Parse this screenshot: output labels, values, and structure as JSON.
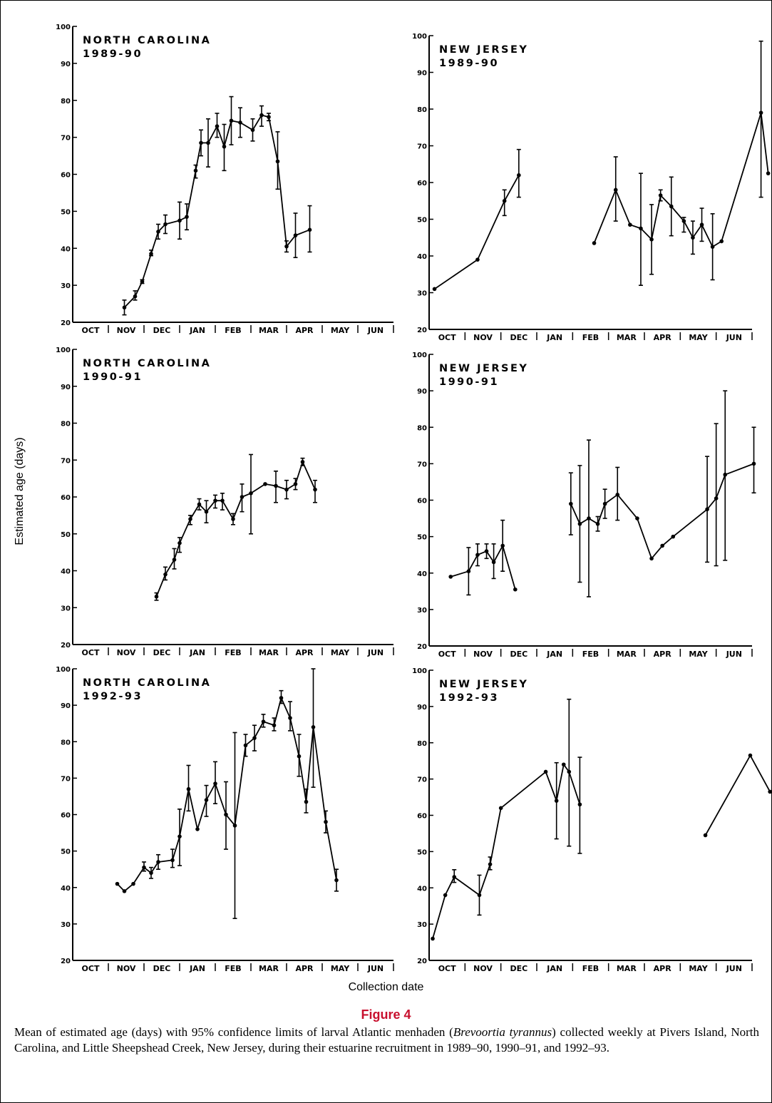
{
  "figure": {
    "y_axis_label": "Estimated age (days)",
    "x_axis_label": "Collection date",
    "title": "Figure 4",
    "caption_parts": [
      "Mean of estimated age (days) with 95% confidence limits of larval Atlantic menhaden (",
      "Brevoortia tyrannus",
      ") collected weekly at Pivers Island, North Carolina, and Little Sheepshead Creek, New Jersey, during their estuarine recruitment in 1989–90, 1990–91, and 1992–93."
    ]
  },
  "colors": {
    "ink": "#000000",
    "figure_title": "#c8102e"
  },
  "chart_data": [
    {
      "type": "line",
      "panel_title": [
        "NORTH CAROLINA",
        "1989-90"
      ],
      "ylim": [
        20,
        100
      ],
      "yticks": [
        20,
        30,
        40,
        50,
        60,
        70,
        80,
        90,
        100
      ],
      "months": [
        "OCT",
        "NOV",
        "DEC",
        "JAN",
        "FEB",
        "MAR",
        "APR",
        "MAY",
        "JUN"
      ],
      "points": [
        {
          "x": 1.45,
          "y": 24,
          "lo": 22,
          "hi": 26
        },
        {
          "x": 1.75,
          "y": 27,
          "lo": 26,
          "hi": 28.5
        },
        {
          "x": 1.95,
          "y": 31,
          "lo": 30.5,
          "hi": 31.5
        },
        {
          "x": 2.2,
          "y": 38.5,
          "lo": 38,
          "hi": 39.5
        },
        {
          "x": 2.4,
          "y": 44.5,
          "lo": 42.5,
          "hi": 46.5
        },
        {
          "x": 2.6,
          "y": 46.5,
          "lo": 44,
          "hi": 49
        },
        {
          "x": 3.0,
          "y": 47.5,
          "lo": 42.5,
          "hi": 52.5
        },
        {
          "x": 3.2,
          "y": 48.5,
          "lo": 45,
          "hi": 52
        },
        {
          "x": 3.45,
          "y": 61,
          "lo": 59,
          "hi": 62.5
        },
        {
          "x": 3.6,
          "y": 68.5,
          "lo": 65,
          "hi": 72
        },
        {
          "x": 3.8,
          "y": 68.5,
          "lo": 62,
          "hi": 75
        },
        {
          "x": 4.05,
          "y": 73,
          "lo": 70,
          "hi": 76.5
        },
        {
          "x": 4.25,
          "y": 67.5,
          "lo": 61,
          "hi": 73.5
        },
        {
          "x": 4.45,
          "y": 74.5,
          "lo": 68,
          "hi": 81
        },
        {
          "x": 4.7,
          "y": 74,
          "lo": 70,
          "hi": 78
        },
        {
          "x": 5.05,
          "y": 72,
          "lo": 69,
          "hi": 75
        },
        {
          "x": 5.3,
          "y": 76,
          "lo": 73,
          "hi": 78.5
        },
        {
          "x": 5.5,
          "y": 75.5,
          "lo": 74.5,
          "hi": 76.5
        },
        {
          "x": 5.75,
          "y": 63.5,
          "lo": 56,
          "hi": 71.5
        },
        {
          "x": 6.0,
          "y": 40.5,
          "lo": 39,
          "hi": 42
        },
        {
          "x": 6.25,
          "y": 43.5,
          "lo": 37.5,
          "hi": 49.5
        },
        {
          "x": 6.65,
          "y": 45,
          "lo": 39,
          "hi": 51.5
        }
      ]
    },
    {
      "type": "line",
      "panel_title": [
        "NEW JERSEY",
        "1989-90"
      ],
      "ylim": [
        20,
        100
      ],
      "yticks": [
        20,
        30,
        40,
        50,
        60,
        70,
        80,
        90,
        100
      ],
      "months": [
        "OCT",
        "NOV",
        "DEC",
        "JAN",
        "FEB",
        "MAR",
        "APR",
        "MAY",
        "JUN"
      ],
      "points": [
        {
          "x": 0.15,
          "y": 31
        },
        {
          "x": 1.35,
          "y": 39
        },
        {
          "x": 2.1,
          "y": 55,
          "lo": 51,
          "hi": 58
        },
        {
          "x": 2.5,
          "y": 62,
          "lo": 56,
          "hi": 69
        },
        {
          "x": null,
          "y": null
        },
        {
          "x": 4.6,
          "y": 43.5
        },
        {
          "x": 5.2,
          "y": 58,
          "lo": 49.5,
          "hi": 67
        },
        {
          "x": 5.6,
          "y": 48.5
        },
        {
          "x": 5.9,
          "y": 47.5,
          "lo": 32,
          "hi": 62.5
        },
        {
          "x": 6.2,
          "y": 44.5,
          "lo": 35,
          "hi": 54
        },
        {
          "x": 6.45,
          "y": 56.5,
          "lo": 55,
          "hi": 58
        },
        {
          "x": 6.75,
          "y": 53.5,
          "lo": 45.5,
          "hi": 61.5
        },
        {
          "x": 7.1,
          "y": 49.5,
          "lo": 46.5,
          "hi": 50.5
        },
        {
          "x": 7.35,
          "y": 45,
          "lo": 40.5,
          "hi": 49.5
        },
        {
          "x": 7.6,
          "y": 48.5,
          "lo": 44,
          "hi": 53
        },
        {
          "x": 7.9,
          "y": 42.5,
          "lo": 33.5,
          "hi": 51.5
        },
        {
          "x": 8.15,
          "y": 44
        },
        {
          "x": 9.25,
          "y": 79,
          "lo": 56,
          "hi": 98.5
        },
        {
          "x": 9.45,
          "y": 62.5
        }
      ]
    },
    {
      "type": "line",
      "panel_title": [
        "NORTH CAROLINA",
        "1990-91"
      ],
      "ylim": [
        20,
        100
      ],
      "yticks": [
        20,
        30,
        40,
        50,
        60,
        70,
        80,
        90,
        100
      ],
      "months": [
        "OCT",
        "NOV",
        "DEC",
        "JAN",
        "FEB",
        "MAR",
        "APR",
        "MAY",
        "JUN"
      ],
      "points": [
        {
          "x": 2.35,
          "y": 33,
          "lo": 32,
          "hi": 34
        },
        {
          "x": 2.6,
          "y": 39,
          "lo": 37.5,
          "hi": 41
        },
        {
          "x": 2.85,
          "y": 43,
          "lo": 40.5,
          "hi": 46
        },
        {
          "x": 3.0,
          "y": 47.5,
          "lo": 45,
          "hi": 49
        },
        {
          "x": 3.3,
          "y": 54,
          "lo": 52.5,
          "hi": 55
        },
        {
          "x": 3.55,
          "y": 58,
          "lo": 56.5,
          "hi": 59.5
        },
        {
          "x": 3.75,
          "y": 56,
          "lo": 53,
          "hi": 59
        },
        {
          "x": 4.0,
          "y": 59,
          "lo": 57,
          "hi": 60.5
        },
        {
          "x": 4.2,
          "y": 59,
          "lo": 56.5,
          "hi": 61
        },
        {
          "x": 4.5,
          "y": 54,
          "lo": 52.5,
          "hi": 55.5
        },
        {
          "x": 4.75,
          "y": 60,
          "lo": 56,
          "hi": 63.5
        },
        {
          "x": 5.0,
          "y": 61,
          "lo": 50,
          "hi": 71.5
        },
        {
          "x": 5.4,
          "y": 63.5
        },
        {
          "x": 5.7,
          "y": 63,
          "lo": 58.5,
          "hi": 67
        },
        {
          "x": 6.0,
          "y": 62,
          "lo": 59.5,
          "hi": 64.5
        },
        {
          "x": 6.25,
          "y": 63.5,
          "lo": 62,
          "hi": 65
        },
        {
          "x": 6.45,
          "y": 69.5,
          "lo": 68.5,
          "hi": 70.5
        },
        {
          "x": 6.8,
          "y": 62,
          "lo": 58.5,
          "hi": 64.5
        }
      ]
    },
    {
      "type": "line",
      "panel_title": [
        "NEW JERSEY",
        "1990-91"
      ],
      "ylim": [
        20,
        100
      ],
      "yticks": [
        20,
        30,
        40,
        50,
        60,
        70,
        80,
        90,
        100
      ],
      "months": [
        "OCT",
        "NOV",
        "DEC",
        "JAN",
        "FEB",
        "MAR",
        "APR",
        "MAY",
        "JUN"
      ],
      "points": [
        {
          "x": 0.6,
          "y": 39
        },
        {
          "x": 1.1,
          "y": 40.5,
          "lo": 34,
          "hi": 47
        },
        {
          "x": 1.35,
          "y": 45,
          "lo": 42,
          "hi": 48
        },
        {
          "x": 1.6,
          "y": 46,
          "lo": 44,
          "hi": 48
        },
        {
          "x": 1.8,
          "y": 43,
          "lo": 38.5,
          "hi": 48
        },
        {
          "x": 2.05,
          "y": 47.5,
          "lo": 40.5,
          "hi": 54.5
        },
        {
          "x": 2.4,
          "y": 35.5
        },
        {
          "x": null,
          "y": null
        },
        {
          "x": 3.95,
          "y": 59,
          "lo": 50.5,
          "hi": 67.5
        },
        {
          "x": 4.2,
          "y": 53.5,
          "lo": 37.5,
          "hi": 69.5
        },
        {
          "x": 4.45,
          "y": 55,
          "lo": 33.5,
          "hi": 76.5
        },
        {
          "x": 4.7,
          "y": 53.5,
          "lo": 51.5,
          "hi": 55.5
        },
        {
          "x": 4.9,
          "y": 59,
          "lo": 55,
          "hi": 63
        },
        {
          "x": 5.25,
          "y": 61.5,
          "lo": 54.5,
          "hi": 69
        },
        {
          "x": 5.8,
          "y": 55
        },
        {
          "x": 6.2,
          "y": 44
        },
        {
          "x": 6.5,
          "y": 47.5
        },
        {
          "x": 6.8,
          "y": 50
        },
        {
          "x": 7.75,
          "y": 57.5,
          "lo": 43,
          "hi": 72
        },
        {
          "x": 8.0,
          "y": 60.5,
          "lo": 42,
          "hi": 81
        },
        {
          "x": 8.25,
          "y": 67,
          "lo": 43.5,
          "hi": 90
        },
        {
          "x": 9.05,
          "y": 70,
          "lo": 62,
          "hi": 80
        }
      ]
    },
    {
      "type": "line",
      "panel_title": [
        "NORTH CAROLINA",
        "1992-93"
      ],
      "ylim": [
        20,
        100
      ],
      "yticks": [
        20,
        30,
        40,
        50,
        60,
        70,
        80,
        90,
        100
      ],
      "months": [
        "OCT",
        "NOV",
        "DEC",
        "JAN",
        "FEB",
        "MAR",
        "APR",
        "MAY",
        "JUN"
      ],
      "points": [
        {
          "x": 1.25,
          "y": 41
        },
        {
          "x": 1.45,
          "y": 39
        },
        {
          "x": 1.7,
          "y": 41
        },
        {
          "x": 2.0,
          "y": 45.5,
          "lo": 44.5,
          "hi": 47
        },
        {
          "x": 2.2,
          "y": 44,
          "lo": 42.5,
          "hi": 45.5
        },
        {
          "x": 2.4,
          "y": 47,
          "lo": 45,
          "hi": 49
        },
        {
          "x": 2.8,
          "y": 47.5,
          "lo": 45.5,
          "hi": 50.5
        },
        {
          "x": 3.0,
          "y": 54,
          "lo": 46,
          "hi": 61.5
        },
        {
          "x": 3.25,
          "y": 67,
          "lo": 61,
          "hi": 73.5
        },
        {
          "x": 3.5,
          "y": 56
        },
        {
          "x": 3.75,
          "y": 64,
          "lo": 59.5,
          "hi": 68
        },
        {
          "x": 4.0,
          "y": 68.5,
          "lo": 63,
          "hi": 74.5
        },
        {
          "x": 4.3,
          "y": 60,
          "lo": 50.5,
          "hi": 69
        },
        {
          "x": 4.55,
          "y": 57,
          "lo": 31.5,
          "hi": 82.5
        },
        {
          "x": 4.85,
          "y": 79,
          "lo": 76,
          "hi": 82
        },
        {
          "x": 5.1,
          "y": 81,
          "lo": 77.5,
          "hi": 84.5
        },
        {
          "x": 5.35,
          "y": 85.5,
          "lo": 84,
          "hi": 87.5
        },
        {
          "x": 5.65,
          "y": 84.5,
          "lo": 83,
          "hi": 86.5
        },
        {
          "x": 5.85,
          "y": 92,
          "lo": 90.5,
          "hi": 94
        },
        {
          "x": 6.1,
          "y": 86.5,
          "lo": 83,
          "hi": 91
        },
        {
          "x": 6.35,
          "y": 76,
          "lo": 70.5,
          "hi": 82
        },
        {
          "x": 6.55,
          "y": 63.5,
          "lo": 60.5,
          "hi": 67
        },
        {
          "x": 6.75,
          "y": 84,
          "lo": 67.5,
          "hi": 100
        },
        {
          "x": 7.1,
          "y": 58,
          "lo": 55,
          "hi": 61
        },
        {
          "x": 7.4,
          "y": 42,
          "lo": 39,
          "hi": 45
        }
      ]
    },
    {
      "type": "line",
      "panel_title": [
        "NEW JERSEY",
        "1992-93"
      ],
      "ylim": [
        20,
        100
      ],
      "yticks": [
        20,
        30,
        40,
        50,
        60,
        70,
        80,
        90,
        100
      ],
      "months": [
        "OCT",
        "NOV",
        "DEC",
        "JAN",
        "FEB",
        "MAR",
        "APR",
        "MAY",
        "JUN"
      ],
      "points": [
        {
          "x": 0.1,
          "y": 26
        },
        {
          "x": 0.45,
          "y": 38
        },
        {
          "x": 0.7,
          "y": 43,
          "lo": 41.5,
          "hi": 45
        },
        {
          "x": 1.4,
          "y": 38,
          "lo": 32.5,
          "hi": 43.5
        },
        {
          "x": 1.7,
          "y": 46.5,
          "lo": 45,
          "hi": 48.5
        },
        {
          "x": 2.0,
          "y": 62
        },
        {
          "x": 3.25,
          "y": 72
        },
        {
          "x": 3.55,
          "y": 64,
          "lo": 53.5,
          "hi": 74.5
        },
        {
          "x": 3.75,
          "y": 74
        },
        {
          "x": 3.9,
          "y": 72,
          "lo": 51.5,
          "hi": 92
        },
        {
          "x": 4.2,
          "y": 63,
          "lo": 49.5,
          "hi": 76
        },
        {
          "x": null,
          "y": null
        },
        {
          "x": 7.7,
          "y": 54.5
        },
        {
          "x": 8.95,
          "y": 76.5
        },
        {
          "x": 9.5,
          "y": 66.5
        }
      ]
    }
  ]
}
